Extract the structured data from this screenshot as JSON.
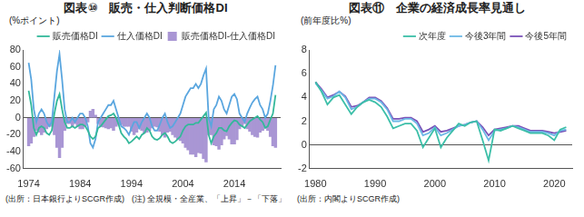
{
  "chart_data": [
    {
      "type": "line",
      "title": "図表⑩　販売・仕入判断価格DI",
      "y_label": "(%ポイント)",
      "notes": [
        "(出所：日本銀行よりSCGR作成)",
        "(注) 全規模・全産業、「上昇」－「下落」"
      ],
      "x": [
        1974,
        1974.5,
        1975,
        1975.5,
        1976,
        1976.5,
        1977,
        1977.5,
        1978,
        1978.5,
        1979,
        1979.5,
        1980,
        1980.5,
        1981,
        1981.5,
        1982,
        1982.5,
        1983,
        1983.5,
        1984,
        1984.5,
        1985,
        1985.5,
        1986,
        1986.5,
        1987,
        1987.5,
        1988,
        1988.5,
        1989,
        1989.5,
        1990,
        1990.5,
        1991,
        1991.5,
        1992,
        1992.5,
        1993,
        1993.5,
        1994,
        1994.5,
        1995,
        1995.5,
        1996,
        1996.5,
        1997,
        1997.5,
        1998,
        1998.5,
        1999,
        1999.5,
        2000,
        2000.5,
        2001,
        2001.5,
        2002,
        2002.5,
        2003,
        2003.5,
        2004,
        2004.5,
        2005,
        2005.5,
        2006,
        2006.5,
        2007,
        2007.5,
        2008,
        2008.5,
        2009,
        2009.5,
        2010,
        2010.5,
        2011,
        2011.5,
        2012,
        2012.5,
        2013,
        2013.5,
        2014,
        2014.5,
        2015,
        2015.5,
        2016,
        2016.5,
        2017,
        2017.5,
        2018,
        2018.5,
        2019,
        2019.5,
        2020,
        2020.5,
        2021,
        2021.5,
        2022
      ],
      "series": [
        {
          "name": "販売価格DI-仕入価格DI",
          "type": "bar",
          "color": "#a996d4",
          "values": [
            -33,
            -30,
            -22,
            -15,
            -17,
            -20,
            -17,
            -13,
            -10,
            -10,
            -20,
            -35,
            -47,
            -35,
            -15,
            -7,
            -7,
            -10,
            -7,
            -10,
            -13,
            -13,
            -10,
            -5,
            8,
            10,
            3,
            -7,
            -10,
            -11,
            -12,
            -13,
            -12,
            -15,
            -10,
            -8,
            -8,
            -10,
            -10,
            -10,
            -16,
            -20,
            -17,
            -13,
            -15,
            -18,
            -17,
            -15,
            -12,
            -10,
            -11,
            -16,
            -20,
            -23,
            -17,
            -16,
            -20,
            -23,
            -25,
            -27,
            -30,
            -35,
            -38,
            -43,
            -43,
            -46,
            -41,
            -42,
            -48,
            -52,
            -20,
            -20,
            -32,
            -33,
            -37,
            -32,
            -25,
            -21,
            -25,
            -31,
            -31,
            -26,
            -13,
            -10,
            -7,
            -13,
            -16,
            -20,
            -22,
            -23,
            -17,
            -15,
            -12,
            -15,
            -22,
            -33,
            -35
          ]
        },
        {
          "name": "販売価格DI",
          "type": "line",
          "color": "#33b89a",
          "values": [
            32,
            15,
            -12,
            -20,
            -12,
            -10,
            -12,
            -18,
            -20,
            -15,
            5,
            20,
            28,
            10,
            -5,
            -12,
            -12,
            -10,
            -12,
            -10,
            -8,
            -8,
            -10,
            -15,
            -22,
            -25,
            -22,
            -12,
            -10,
            -6,
            -2,
            2,
            3,
            5,
            0,
            -8,
            -18,
            -22,
            -25,
            -30,
            -28,
            -25,
            -22,
            -25,
            -20,
            -18,
            -12,
            -15,
            -22,
            -25,
            -26,
            -24,
            -20,
            -18,
            -22,
            -28,
            -30,
            -28,
            -25,
            -22,
            -15,
            -10,
            -8,
            -8,
            -8,
            -6,
            -6,
            -2,
            2,
            6,
            -20,
            -30,
            -22,
            -18,
            -12,
            -12,
            -15,
            -16,
            -10,
            -6,
            -3,
            -4,
            -8,
            -10,
            -12,
            -8,
            -4,
            -2,
            0,
            2,
            -2,
            -5,
            -12,
            -10,
            -2,
            5,
            27
          ]
        },
        {
          "name": "仕入価格DI",
          "type": "line",
          "color": "#5aa6df",
          "values": [
            65,
            45,
            10,
            -5,
            5,
            10,
            5,
            -5,
            -10,
            -5,
            25,
            55,
            75,
            45,
            10,
            -5,
            -5,
            0,
            -5,
            0,
            5,
            5,
            0,
            -10,
            -30,
            -35,
            -25,
            -5,
            0,
            5,
            10,
            15,
            15,
            20,
            10,
            0,
            -10,
            -12,
            -15,
            -20,
            -12,
            -5,
            -5,
            -12,
            -5,
            0,
            5,
            0,
            -10,
            -15,
            -15,
            -8,
            0,
            5,
            -5,
            -12,
            -10,
            -5,
            0,
            5,
            15,
            25,
            30,
            35,
            35,
            40,
            35,
            40,
            50,
            58,
            0,
            -10,
            10,
            15,
            25,
            20,
            10,
            5,
            15,
            25,
            28,
            22,
            5,
            0,
            -5,
            5,
            12,
            18,
            22,
            25,
            15,
            10,
            0,
            5,
            20,
            38,
            62
          ]
        }
      ],
      "xlim": [
        1973,
        2023
      ],
      "xticks": [
        1974,
        1984,
        1994,
        2004,
        2014
      ],
      "ylim": [
        -60,
        80
      ],
      "yticks": [
        -60,
        -40,
        -20,
        0,
        20,
        40,
        60,
        80
      ],
      "grid": false,
      "legend": "top"
    },
    {
      "type": "line",
      "title": "図表⑪　企業の経済成長率見通し",
      "y_label": "(前年度比%)",
      "notes": [
        "(出所：内閣よりSCGR作成)"
      ],
      "x": [
        1980,
        1981,
        1982,
        1983,
        1984,
        1985,
        1986,
        1987,
        1988,
        1989,
        1990,
        1991,
        1992,
        1993,
        1994,
        1995,
        1996,
        1997,
        1998,
        1999,
        2000,
        2001,
        2002,
        2003,
        2004,
        2005,
        2006,
        2007,
        2008,
        2009,
        2010,
        2011,
        2012,
        2013,
        2014,
        2015,
        2016,
        2017,
        2018,
        2019,
        2020,
        2021,
        2022
      ],
      "series": [
        {
          "name": "次年度",
          "type": "line",
          "color": "#3cbfa8",
          "values": [
            5.3,
            4.5,
            3.4,
            4.0,
            4.2,
            3.4,
            2.6,
            3.2,
            3.6,
            3.8,
            3.6,
            3.2,
            2.4,
            1.4,
            1.6,
            1.8,
            1.8,
            1.2,
            -0.2,
            0.6,
            1.4,
            -0.2,
            0.6,
            1.2,
            1.8,
            1.6,
            1.9,
            2.0,
            0.4,
            -1.3,
            1.3,
            1.2,
            1.4,
            1.6,
            1.4,
            1.2,
            1.0,
            1.0,
            1.0,
            0.8,
            0.4,
            1.3,
            1.5
          ]
        },
        {
          "name": "今後3年間",
          "type": "line",
          "color": "#6cb8e6",
          "values": [
            5.2,
            4.6,
            3.9,
            4.1,
            4.5,
            4.0,
            3.0,
            3.2,
            3.6,
            3.9,
            3.9,
            3.6,
            3.0,
            2.0,
            2.0,
            2.2,
            2.2,
            1.8,
            0.8,
            1.0,
            1.5,
            0.8,
            1.0,
            1.3,
            1.6,
            1.7,
            1.9,
            2.0,
            1.3,
            0.4,
            1.2,
            1.3,
            1.4,
            1.6,
            1.5,
            1.3,
            1.1,
            1.1,
            1.1,
            1.0,
            0.8,
            1.2,
            1.3
          ]
        },
        {
          "name": "今後5年間",
          "type": "line",
          "color": "#7a52b8",
          "values": [
            5.3,
            4.7,
            4.0,
            4.2,
            4.5,
            4.1,
            3.2,
            3.3,
            3.6,
            4.0,
            4.0,
            3.7,
            3.1,
            2.2,
            2.2,
            2.3,
            2.3,
            2.0,
            1.1,
            1.3,
            1.6,
            1.1,
            1.2,
            1.4,
            1.6,
            1.7,
            1.9,
            2.0,
            1.5,
            0.8,
            1.3,
            1.4,
            1.5,
            1.6,
            1.6,
            1.4,
            1.2,
            1.2,
            1.2,
            1.1,
            1.0,
            1.1,
            1.2
          ]
        }
      ],
      "xlim": [
        1979,
        2023
      ],
      "xticks": [
        1980,
        1990,
        2000,
        2010,
        2020
      ],
      "ylim": [
        -2,
        8
      ],
      "yticks": [
        -2,
        0,
        2,
        4,
        6,
        8
      ],
      "grid": false,
      "legend": "top"
    }
  ]
}
